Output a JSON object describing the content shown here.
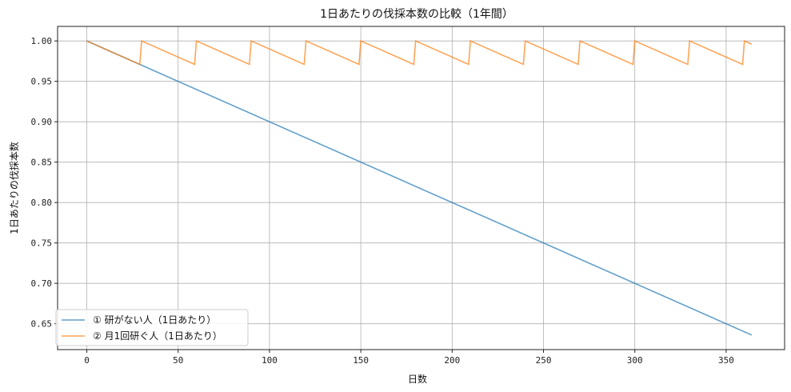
{
  "chart_data": {
    "type": "line",
    "title": "1日あたりの伐採本数の比較（1年間）",
    "xlabel": "日数",
    "ylabel": "1日あたりの伐採本数",
    "xlim": [
      -16,
      382
    ],
    "ylim": [
      0.618,
      1.018
    ],
    "xticks": [
      0,
      50,
      100,
      150,
      200,
      250,
      300,
      350
    ],
    "yticks": [
      0.65,
      0.7,
      0.75,
      0.8,
      0.85,
      0.9,
      0.95,
      1.0
    ],
    "xtick_labels": [
      "0",
      "50",
      "100",
      "150",
      "200",
      "250",
      "300",
      "350"
    ],
    "ytick_labels": [
      "0.65",
      "0.70",
      "0.75",
      "0.80",
      "0.85",
      "0.90",
      "0.95",
      "1.00"
    ],
    "grid": true,
    "legend_position": "lower-left",
    "series": [
      {
        "name": "① 研がない人（1日あたり）",
        "color": "#1f77b4",
        "points": [
          [
            0,
            1.0
          ],
          [
            364,
            0.636
          ]
        ]
      },
      {
        "name": "② 月1回研ぐ人（1日あたり）",
        "color": "#ff7f0e",
        "points": [
          [
            0,
            1.0
          ],
          [
            29,
            0.971
          ],
          [
            30,
            1.0
          ],
          [
            59,
            0.971
          ],
          [
            60,
            1.0
          ],
          [
            89,
            0.971
          ],
          [
            90,
            1.0
          ],
          [
            119,
            0.971
          ],
          [
            120,
            1.0
          ],
          [
            149,
            0.971
          ],
          [
            150,
            1.0
          ],
          [
            179,
            0.971
          ],
          [
            180,
            1.0
          ],
          [
            209,
            0.971
          ],
          [
            210,
            1.0
          ],
          [
            239,
            0.971
          ],
          [
            240,
            1.0
          ],
          [
            269,
            0.971
          ],
          [
            270,
            1.0
          ],
          [
            299,
            0.971
          ],
          [
            300,
            1.0
          ],
          [
            329,
            0.971
          ],
          [
            330,
            1.0
          ],
          [
            359,
            0.971
          ],
          [
            360,
            1.0
          ],
          [
            364,
            0.996
          ]
        ]
      }
    ]
  }
}
